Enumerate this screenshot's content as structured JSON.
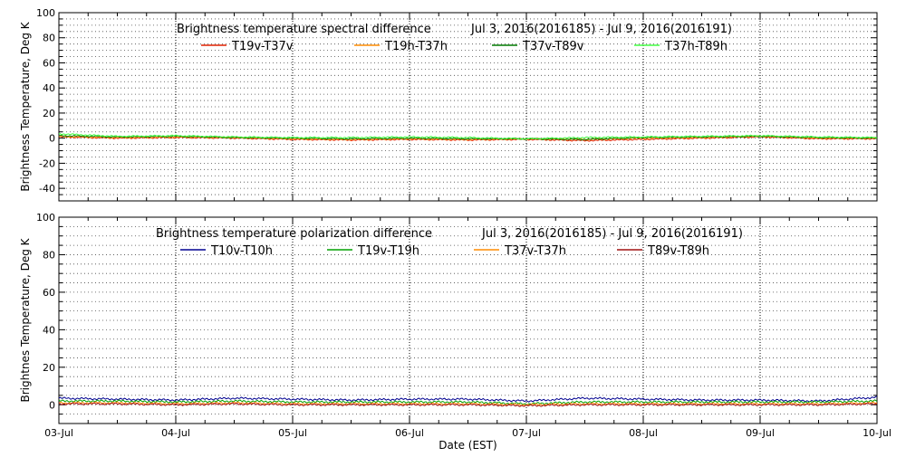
{
  "chart_data": [
    {
      "type": "line",
      "title": "Brightness temperature spectral difference",
      "date_range": "Jul  3, 2016(2016185) - Jul  9, 2016(2016191)",
      "ylabel": "Brightness Temperature, Deg K",
      "xlabel": "",
      "ylim": [
        -50,
        100
      ],
      "yticks": [
        "-40",
        "-20",
        "0",
        "20",
        "40",
        "60",
        "80",
        "100"
      ],
      "ytick_values": [
        -40,
        -20,
        0,
        20,
        40,
        60,
        80,
        100
      ],
      "xlim": [
        0,
        7
      ],
      "grid": "vertical dotted at day boundaries",
      "legend_placement": "top",
      "x_days": [
        0,
        0.5,
        1,
        1.5,
        2,
        2.5,
        3,
        3.5,
        4,
        4.5,
        5,
        5.5,
        6,
        6.5,
        7
      ],
      "series": [
        {
          "name": "T19v-T37v",
          "color": "#e02000",
          "values": [
            1,
            0,
            0.5,
            0,
            -1,
            -1.5,
            -1,
            -1.5,
            -1,
            -2,
            -1,
            0,
            1,
            -0.5,
            -0.5
          ]
        },
        {
          "name": "T19h-T37h",
          "color": "#ff8c00",
          "values": [
            1.5,
            0.5,
            1,
            0.5,
            -0.5,
            -1,
            -0.5,
            -1,
            -0.5,
            -1,
            0,
            0.5,
            1.5,
            0,
            0
          ]
        },
        {
          "name": "T37v-T89v",
          "color": "#007a00",
          "values": [
            2,
            1,
            1.5,
            0.5,
            0,
            -0.5,
            0,
            -0.5,
            -0.5,
            -1,
            0.5,
            1,
            1.5,
            0.5,
            0
          ]
        },
        {
          "name": "T37h-T89h",
          "color": "#40ff40",
          "values": [
            3.5,
            1.5,
            2,
            1,
            0.5,
            0.5,
            1,
            0.5,
            -0.5,
            0.5,
            1,
            1.5,
            2,
            1,
            0.5
          ]
        }
      ]
    },
    {
      "type": "line",
      "title": "Brightness temperature polarization difference",
      "date_range": "Jul  3, 2016(2016185) - Jul  9, 2016(2016191)",
      "ylabel": "Brightnes Temperature, Deg K",
      "xlabel": "Date (EST)",
      "ylim": [
        -10,
        100
      ],
      "yticks": [
        "0",
        "20",
        "40",
        "60",
        "80",
        "100"
      ],
      "ytick_values": [
        0,
        20,
        40,
        60,
        80,
        100
      ],
      "xlim": [
        0,
        7
      ],
      "xticks": [
        "03-Jul",
        "04-Jul",
        "05-Jul",
        "06-Jul",
        "07-Jul",
        "08-Jul",
        "09-Jul",
        "10-Jul"
      ],
      "grid": "vertical dotted at day boundaries",
      "legend_placement": "top",
      "x_days": [
        0,
        0.5,
        1,
        1.5,
        2,
        2.5,
        3,
        3.5,
        4,
        4.5,
        5,
        5.5,
        6,
        6.5,
        7
      ],
      "series": [
        {
          "name": "T10v-T10h",
          "color": "#000090",
          "values": [
            3.5,
            3,
            2.5,
            3.5,
            3,
            2.5,
            3,
            3,
            2,
            3.5,
            3,
            2.5,
            2.5,
            2,
            4
          ]
        },
        {
          "name": "T19v-T19h",
          "color": "#00a000",
          "values": [
            2,
            2,
            1.5,
            2,
            1.5,
            1.5,
            1.5,
            1.5,
            0.5,
            1.5,
            1.5,
            1.5,
            1.5,
            1.5,
            2
          ]
        },
        {
          "name": "T37v-T37h",
          "color": "#ff8c00",
          "values": [
            1,
            1,
            0.5,
            1,
            0.5,
            0.5,
            0.5,
            0.5,
            0,
            0.5,
            0.5,
            0.5,
            0.5,
            0.5,
            1
          ]
        },
        {
          "name": "T89v-T89h",
          "color": "#a01010",
          "values": [
            0.5,
            0.5,
            0,
            0.5,
            0,
            0,
            0,
            0,
            -0.5,
            0,
            0,
            0,
            0,
            0,
            0.5
          ]
        }
      ]
    }
  ]
}
